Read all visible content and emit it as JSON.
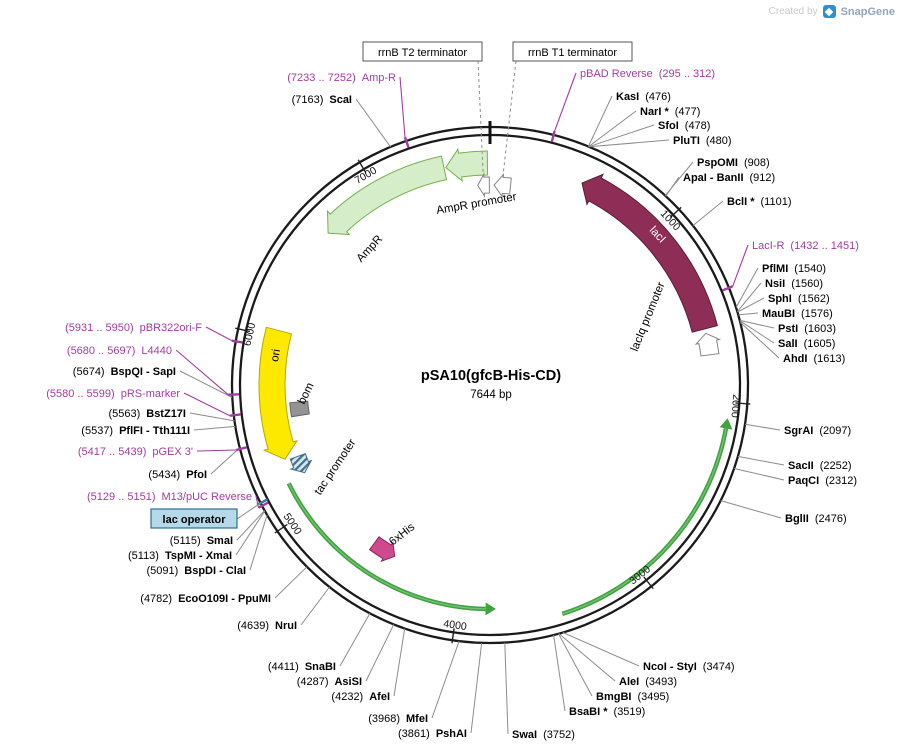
{
  "credit": {
    "prefix": "Created by",
    "brand": "SnapGene"
  },
  "plasmid": {
    "title": "pSA10(gfcB-His-CD)",
    "size_label": "7644 bp",
    "length_bp": 7644
  },
  "scale_ticks": [
    {
      "label": "1000",
      "bp": 1000
    },
    {
      "label": "2000",
      "bp": 2000
    },
    {
      "label": "3000",
      "bp": 3000
    },
    {
      "label": "4000",
      "bp": 4000
    },
    {
      "label": "5000",
      "bp": 5000
    },
    {
      "label": "6000",
      "bp": 6000
    },
    {
      "label": "7000",
      "bp": 7000
    }
  ],
  "features": [
    {
      "id": "ampr-promoter",
      "label": "AmpR promoter",
      "start": 7400,
      "end": 7630,
      "direction": "ccw",
      "fill": "#d5edc8",
      "stroke": "#76b24e",
      "text_color": "#000000"
    },
    {
      "id": "ampr",
      "label": "AmpR",
      "start": 6650,
      "end": 7390,
      "direction": "ccw",
      "fill": "#d5edc8",
      "stroke": "#76b24e",
      "text_color": "#000000"
    },
    {
      "id": "laci",
      "label": "lacI",
      "start": 520,
      "end": 1600,
      "direction": "ccw",
      "fill": "#8e2d56",
      "stroke": "#5e1b38",
      "text_color": "#ffffff"
    },
    {
      "id": "laciq-promoter",
      "label": "lacIq promoter",
      "start": 1625,
      "end": 1745,
      "direction": "ccw",
      "fill": "#ffffff",
      "stroke": "#858585",
      "text_color": "#000000"
    },
    {
      "id": "ori",
      "label": "ori",
      "start": 5310,
      "end": 6040,
      "direction": "ccw",
      "fill": "#fde900",
      "stroke": "#b7a800",
      "text_color": "#000000"
    },
    {
      "id": "bom",
      "label": "bom",
      "start": 5540,
      "end": 5625,
      "direction": "none",
      "fill": "#949494",
      "stroke": "#666666",
      "text_color": "#000000"
    },
    {
      "id": "tac-promoter",
      "label": "tac promoter",
      "start": 5195,
      "end": 5300,
      "direction": "ccw",
      "fill": "hatch",
      "stroke": "#3f6e86",
      "text_color": "#000000"
    },
    {
      "id": "his-tag",
      "label": "6xHis",
      "start": 4440,
      "end": 4590,
      "direction": "ccw",
      "fill": "#cf4a8c",
      "stroke": "#8e2460",
      "text_color": "#000000"
    },
    {
      "id": "rrnb-t2-terminator",
      "label": "rrnB T2 terminator",
      "start": 7570,
      "end": 7640,
      "direction": "ccw",
      "fill": "#ffffff",
      "stroke": "#858585",
      "boxed": true
    },
    {
      "id": "rrnb-t1-terminator",
      "label": "rrnB T1 terminator",
      "start": 25,
      "end": 125,
      "direction": "ccw",
      "fill": "#ffffff",
      "stroke": "#858585",
      "boxed": true
    }
  ],
  "gene_arrows": [
    {
      "id": "cds-arrow-1",
      "start": 5180,
      "end": 3790,
      "direction": "ccw",
      "color": "#3fa33f"
    },
    {
      "id": "cds-arrow-2",
      "start": 3450,
      "end": 2080,
      "direction": "ccw",
      "color": "#3fa33f"
    }
  ],
  "restriction_sites": [
    {
      "name": "KasI",
      "pos_label": "(476)",
      "bp": 476
    },
    {
      "name": "NarI *",
      "pos_label": "(477)",
      "bp": 477
    },
    {
      "name": "SfoI",
      "pos_label": "(478)",
      "bp": 478
    },
    {
      "name": "PluTI",
      "pos_label": "(480)",
      "bp": 480
    },
    {
      "name": "PspOMI",
      "pos_label": "(908)",
      "bp": 908
    },
    {
      "name": "ApaI - BanII",
      "pos_label": "(912)",
      "bp": 912
    },
    {
      "name": "BclI *",
      "pos_label": "(1101)",
      "bp": 1101
    },
    {
      "name": "PflMI",
      "pos_label": "(1540)",
      "bp": 1540
    },
    {
      "name": "NsiI",
      "pos_label": "(1560)",
      "bp": 1560
    },
    {
      "name": "SphI",
      "pos_label": "(1562)",
      "bp": 1562
    },
    {
      "name": "MauBI",
      "pos_label": "(1576)",
      "bp": 1576
    },
    {
      "name": "PstI",
      "pos_label": "(1603)",
      "bp": 1603
    },
    {
      "name": "SalI",
      "pos_label": "(1605)",
      "bp": 1605
    },
    {
      "name": "AhdI",
      "pos_label": "(1613)",
      "bp": 1613
    },
    {
      "name": "SgrAI",
      "pos_label": "(2097)",
      "bp": 2097
    },
    {
      "name": "SacII",
      "pos_label": "(2252)",
      "bp": 2252
    },
    {
      "name": "PaqCI",
      "pos_label": "(2312)",
      "bp": 2312
    },
    {
      "name": "BglII",
      "pos_label": "(2476)",
      "bp": 2476
    },
    {
      "name": "NcoI - StyI",
      "pos_label": "(3474)",
      "bp": 3474
    },
    {
      "name": "AleI",
      "pos_label": "(3493)",
      "bp": 3493
    },
    {
      "name": "BmgBI",
      "pos_label": "(3495)",
      "bp": 3495
    },
    {
      "name": "BsaBI *",
      "pos_label": "(3519)",
      "bp": 3519
    },
    {
      "name": "SwaI",
      "pos_label": "(3752)",
      "bp": 3752
    },
    {
      "name": "PshAI",
      "pos_label": "(3861)",
      "bp": 3861
    },
    {
      "name": "MfeI",
      "pos_label": "(3968)",
      "bp": 3968
    },
    {
      "name": "AfeI",
      "pos_label": "(4232)",
      "bp": 4232
    },
    {
      "name": "AsiSI",
      "pos_label": "(4287)",
      "bp": 4287
    },
    {
      "name": "SnaBI",
      "pos_label": "(4411)",
      "bp": 4411
    },
    {
      "name": "NruI",
      "pos_label": "(4639)",
      "bp": 4639
    },
    {
      "name": "EcoO109I - PpuMI",
      "pos_label": "(4782)",
      "bp": 4782
    },
    {
      "name": "BspDI - ClaI",
      "pos_label": "(5091)",
      "bp": 5091
    },
    {
      "name": "TspMI - XmaI",
      "pos_label": "(5113)",
      "bp": 5113
    },
    {
      "name": "SmaI",
      "pos_label": "(5115)",
      "bp": 5115
    },
    {
      "name": "PfoI",
      "pos_label": "(5434)",
      "bp": 5434
    },
    {
      "name": "PflFI - Tth111I",
      "pos_label": "(5537)",
      "bp": 5537
    },
    {
      "name": "BstZ17I",
      "pos_label": "(5563)",
      "bp": 5563
    },
    {
      "name": "BspQI - SapI",
      "pos_label": "(5674)",
      "bp": 5674
    },
    {
      "name": "ScaI",
      "pos_label": "(7163)",
      "bp": 7163
    }
  ],
  "primers": [
    {
      "name": "Amp-R",
      "range_label": "(7233 .. 7252)",
      "bp": 7242
    },
    {
      "name": "pBAD Reverse",
      "range_label": "(295 .. 312)",
      "bp": 303
    },
    {
      "name": "LacI-R",
      "range_label": "(1432 .. 1451)",
      "bp": 1441
    },
    {
      "name": "pBR322ori-F",
      "range_label": "(5931 .. 5950)",
      "bp": 5940
    },
    {
      "name": "L4440",
      "range_label": "(5680 .. 5697)",
      "bp": 5688
    },
    {
      "name": "pRS-marker",
      "range_label": "(5580 .. 5599)",
      "bp": 5590
    },
    {
      "name": "pGEX 3'",
      "range_label": "(5417 .. 5439)",
      "bp": 5428
    },
    {
      "name": "M13/pUC Reverse",
      "range_label": "(5129 .. 5151)",
      "bp": 5140
    }
  ],
  "operator": {
    "label": "lac operator",
    "bp": 5155,
    "box_fill": "#b5d9e9",
    "box_stroke": "#2e6f94"
  },
  "colors": {
    "backbone": "#1a1a1a",
    "callout": "#8c8c8c",
    "primer": "#a13da1",
    "site_text": "#000000"
  }
}
